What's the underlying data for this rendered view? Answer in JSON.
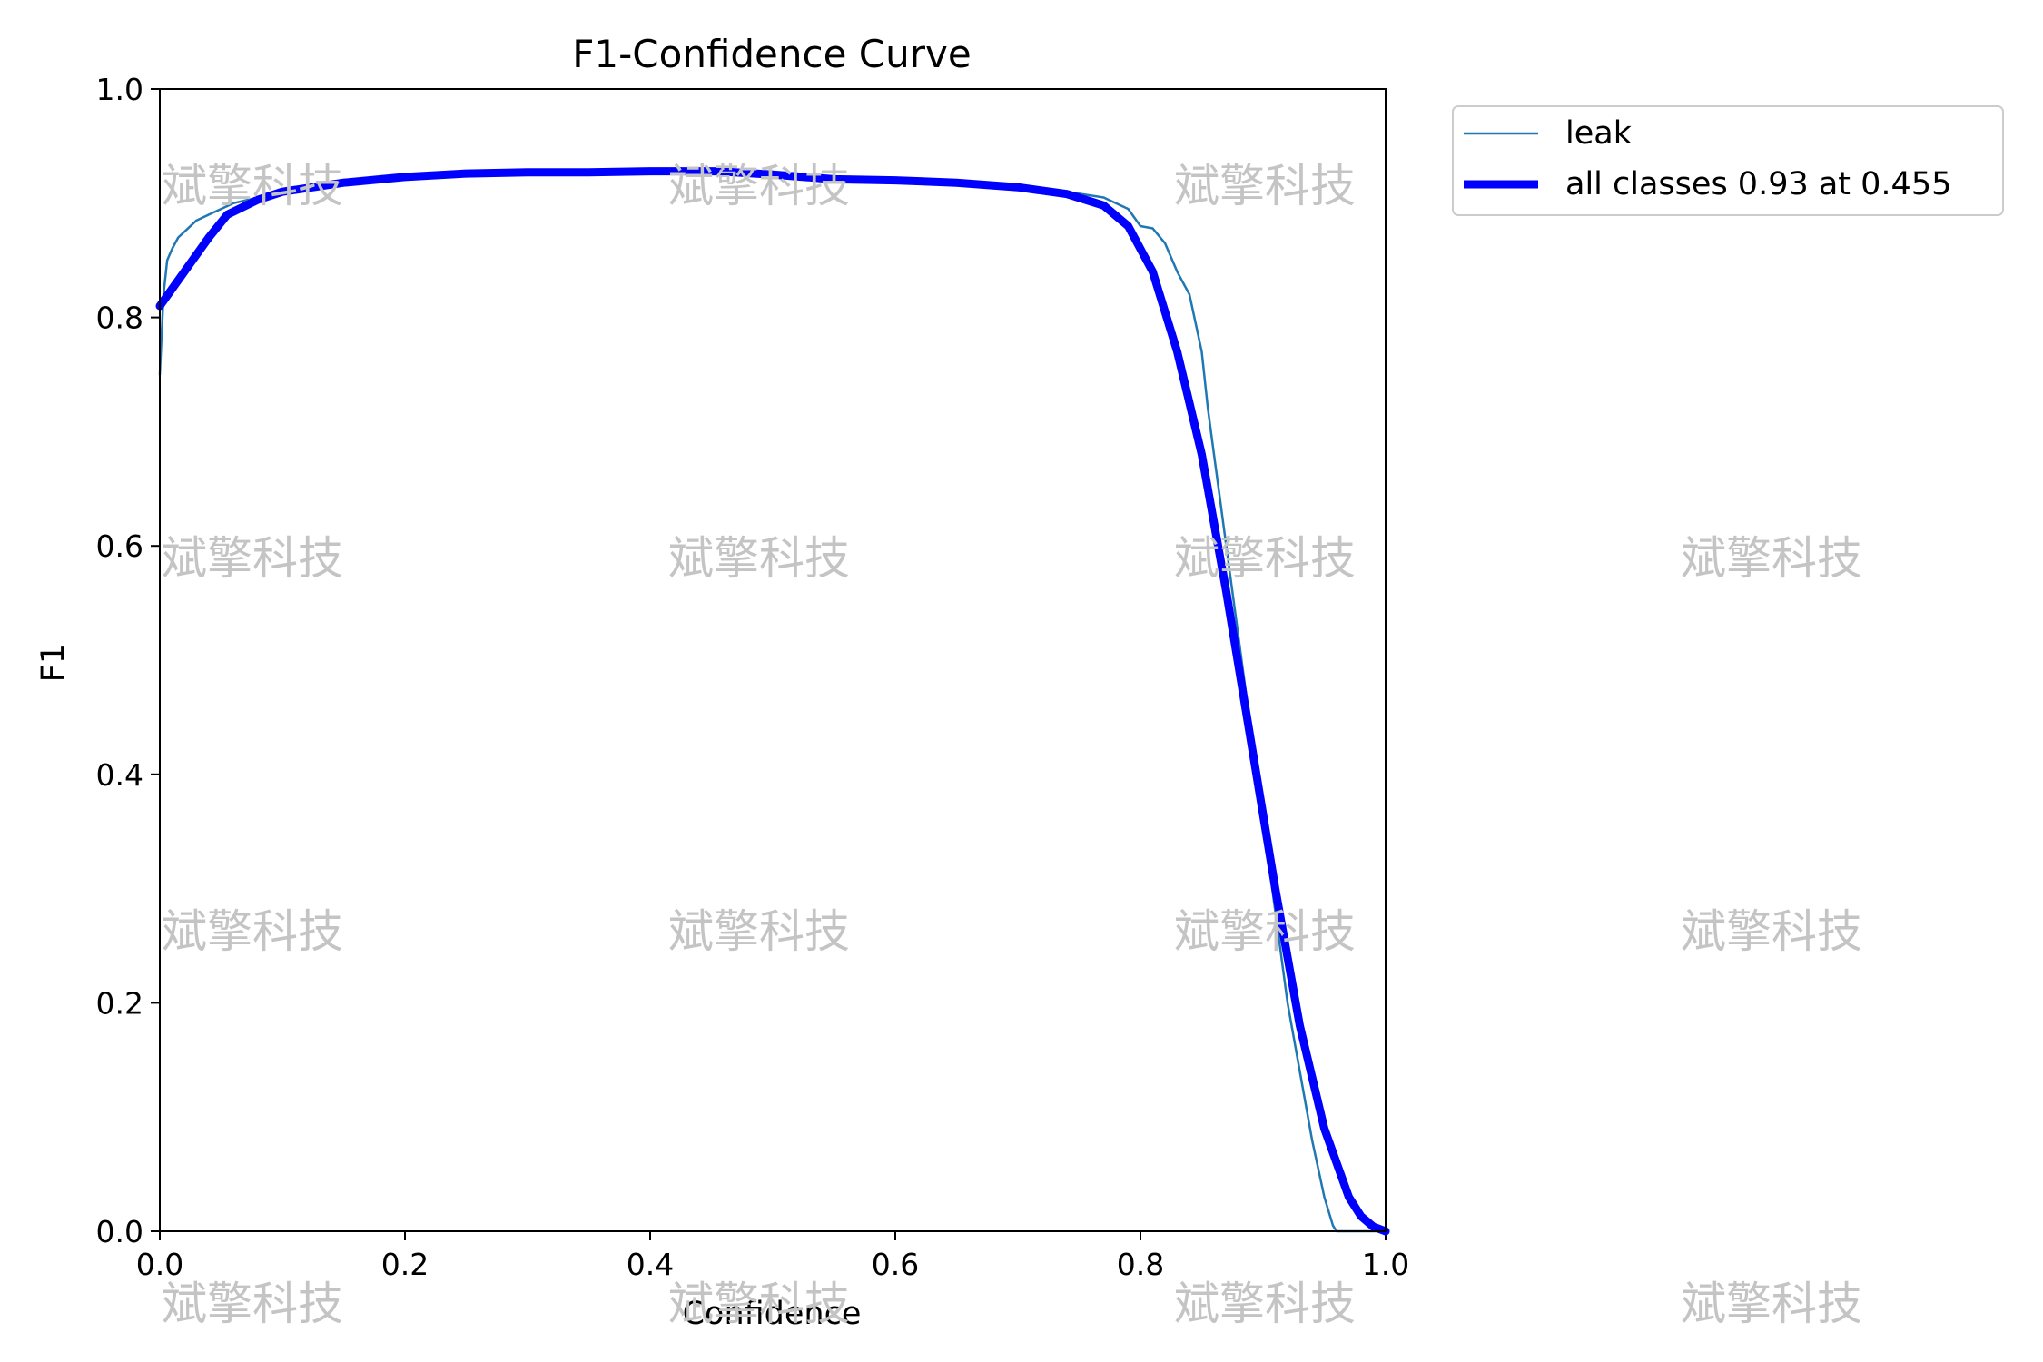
{
  "chart_data": {
    "type": "line",
    "title": "F1-Confidence Curve",
    "xlabel": "Confidence",
    "ylabel": "F1",
    "xlim": [
      0.0,
      1.0
    ],
    "ylim": [
      0.0,
      1.0
    ],
    "xticks": [
      "0.0",
      "0.2",
      "0.4",
      "0.6",
      "0.8",
      "1.0"
    ],
    "yticks": [
      "0.0",
      "0.2",
      "0.4",
      "0.6",
      "0.8",
      "1.0"
    ],
    "grid": false,
    "legend_position": "outside-top-right",
    "series": [
      {
        "name": "leak",
        "color": "#1f77b4",
        "style": "thin",
        "x": [
          0.0,
          0.003,
          0.006,
          0.01,
          0.015,
          0.02,
          0.03,
          0.04,
          0.05,
          0.06,
          0.08,
          0.1,
          0.15,
          0.2,
          0.3,
          0.4,
          0.45,
          0.5,
          0.55,
          0.6,
          0.65,
          0.7,
          0.74,
          0.77,
          0.79,
          0.8,
          0.81,
          0.82,
          0.83,
          0.84,
          0.85,
          0.855,
          0.86,
          0.865,
          0.87,
          0.88,
          0.89,
          0.9,
          0.91,
          0.92,
          0.93,
          0.94,
          0.95,
          0.957,
          0.96,
          0.97,
          0.98,
          0.99,
          1.0
        ],
        "y": [
          0.75,
          0.82,
          0.85,
          0.86,
          0.87,
          0.875,
          0.885,
          0.89,
          0.895,
          0.9,
          0.905,
          0.91,
          0.918,
          0.922,
          0.926,
          0.928,
          0.929,
          0.926,
          0.922,
          0.92,
          0.918,
          0.915,
          0.91,
          0.905,
          0.895,
          0.88,
          0.878,
          0.865,
          0.84,
          0.82,
          0.77,
          0.72,
          0.68,
          0.64,
          0.6,
          0.52,
          0.44,
          0.36,
          0.28,
          0.2,
          0.14,
          0.08,
          0.03,
          0.005,
          0.0,
          0.0,
          0.0,
          0.0,
          0.0
        ]
      },
      {
        "name": "all classes 0.93 at 0.455",
        "color": "#0000ff",
        "style": "thick",
        "x": [
          0.0,
          0.02,
          0.04,
          0.055,
          0.08,
          0.1,
          0.15,
          0.2,
          0.25,
          0.3,
          0.35,
          0.4,
          0.455,
          0.5,
          0.55,
          0.6,
          0.65,
          0.7,
          0.74,
          0.77,
          0.79,
          0.81,
          0.83,
          0.85,
          0.87,
          0.89,
          0.91,
          0.93,
          0.95,
          0.97,
          0.98,
          0.99,
          1.0
        ],
        "y": [
          0.81,
          0.84,
          0.87,
          0.89,
          0.903,
          0.91,
          0.918,
          0.923,
          0.926,
          0.927,
          0.927,
          0.928,
          0.928,
          0.925,
          0.921,
          0.92,
          0.918,
          0.914,
          0.908,
          0.898,
          0.88,
          0.84,
          0.77,
          0.68,
          0.56,
          0.43,
          0.3,
          0.18,
          0.09,
          0.03,
          0.013,
          0.004,
          0.0
        ]
      }
    ]
  },
  "watermark": {
    "text": "斌擎科技",
    "color": "#c4c4c4"
  }
}
